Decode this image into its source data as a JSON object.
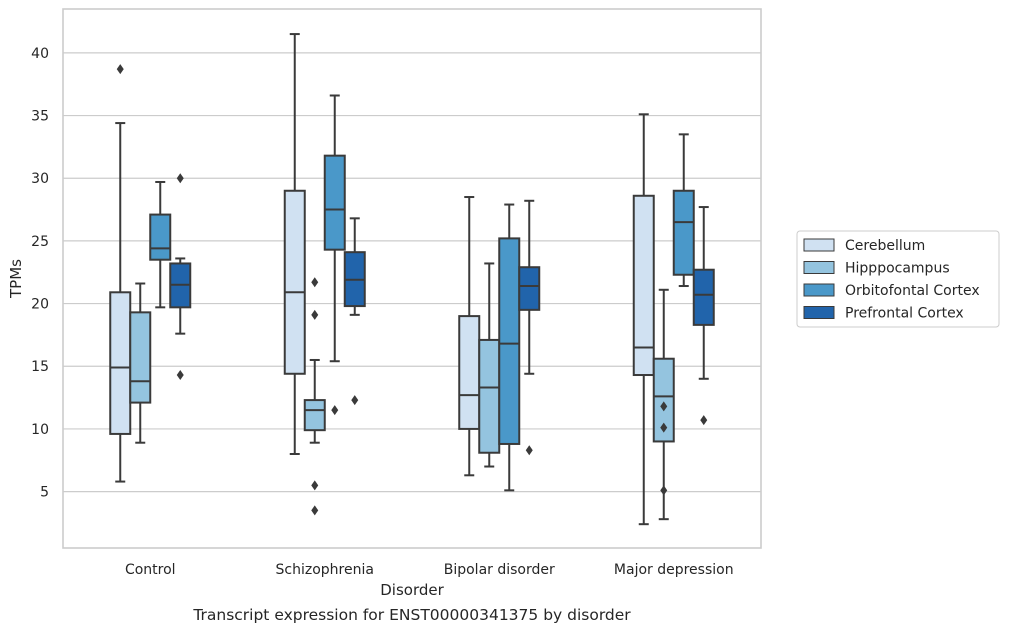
{
  "caption": "Transcript expression for ENST00000341375 by disorder",
  "chart_data": {
    "type": "box",
    "title": "",
    "xlabel": "Disorder",
    "ylabel": "TPMs",
    "categories": [
      "Control",
      "Schizophrenia",
      "Bipolar disorder",
      "Major depression"
    ],
    "ylim": [
      0.5,
      43.5
    ],
    "yticks": [
      5,
      10,
      15,
      20,
      25,
      30,
      35,
      40
    ],
    "grid": "horizontal",
    "legend_position": "right",
    "series": [
      {
        "name": "Cerebellum",
        "color": "#d0e1f2",
        "boxes": [
          {
            "whislo": 5.8,
            "q1": 9.6,
            "med": 14.9,
            "q3": 20.9,
            "whishi": 34.4,
            "fliers": [
              38.7
            ]
          },
          {
            "whislo": 8.0,
            "q1": 14.4,
            "med": 20.9,
            "q3": 29.0,
            "whishi": 41.5,
            "fliers": []
          },
          {
            "whislo": 6.3,
            "q1": 10.0,
            "med": 12.7,
            "q3": 19.0,
            "whishi": 28.5,
            "fliers": []
          },
          {
            "whislo": 2.4,
            "q1": 14.3,
            "med": 16.5,
            "q3": 28.6,
            "whishi": 35.1,
            "fliers": []
          }
        ]
      },
      {
        "name": "Hipppocampus",
        "color": "#94c4df",
        "boxes": [
          {
            "whislo": 8.9,
            "q1": 12.1,
            "med": 13.8,
            "q3": 19.3,
            "whishi": 21.6,
            "fliers": []
          },
          {
            "whislo": 8.9,
            "q1": 9.9,
            "med": 11.5,
            "q3": 12.3,
            "whishi": 15.5,
            "fliers": [
              21.7,
              19.1,
              5.5,
              3.5
            ]
          },
          {
            "whislo": 7.0,
            "q1": 8.1,
            "med": 13.3,
            "q3": 17.1,
            "whishi": 23.2,
            "fliers": []
          },
          {
            "whislo": 2.8,
            "q1": 9.0,
            "med": 12.6,
            "q3": 15.6,
            "whishi": 21.1,
            "fliers": [
              11.8,
              10.1,
              5.1
            ]
          }
        ]
      },
      {
        "name": "Orbitofontal Cortex",
        "color": "#4a98c9",
        "boxes": [
          {
            "whislo": 19.7,
            "q1": 23.5,
            "med": 24.4,
            "q3": 27.1,
            "whishi": 29.7,
            "fliers": []
          },
          {
            "whislo": 15.4,
            "q1": 24.3,
            "med": 27.5,
            "q3": 31.8,
            "whishi": 36.6,
            "fliers": [
              11.5
            ]
          },
          {
            "whislo": 5.1,
            "q1": 8.8,
            "med": 16.8,
            "q3": 25.2,
            "whishi": 27.9,
            "fliers": []
          },
          {
            "whislo": 21.4,
            "q1": 22.3,
            "med": 26.5,
            "q3": 29.0,
            "whishi": 33.5,
            "fliers": []
          }
        ]
      },
      {
        "name": "Prefrontal Cortex",
        "color": "#2164ab",
        "boxes": [
          {
            "whislo": 17.6,
            "q1": 19.7,
            "med": 21.5,
            "q3": 23.2,
            "whishi": 23.6,
            "fliers": [
              30.0,
              14.3
            ]
          },
          {
            "whislo": 19.1,
            "q1": 19.8,
            "med": 21.9,
            "q3": 24.1,
            "whishi": 26.8,
            "fliers": [
              12.3
            ]
          },
          {
            "whislo": 14.4,
            "q1": 19.5,
            "med": 21.4,
            "q3": 22.9,
            "whishi": 28.2,
            "fliers": [
              8.3
            ]
          },
          {
            "whislo": 14.0,
            "q1": 18.3,
            "med": 20.7,
            "q3": 22.7,
            "whishi": 27.7,
            "fliers": [
              10.7
            ]
          }
        ]
      }
    ]
  }
}
